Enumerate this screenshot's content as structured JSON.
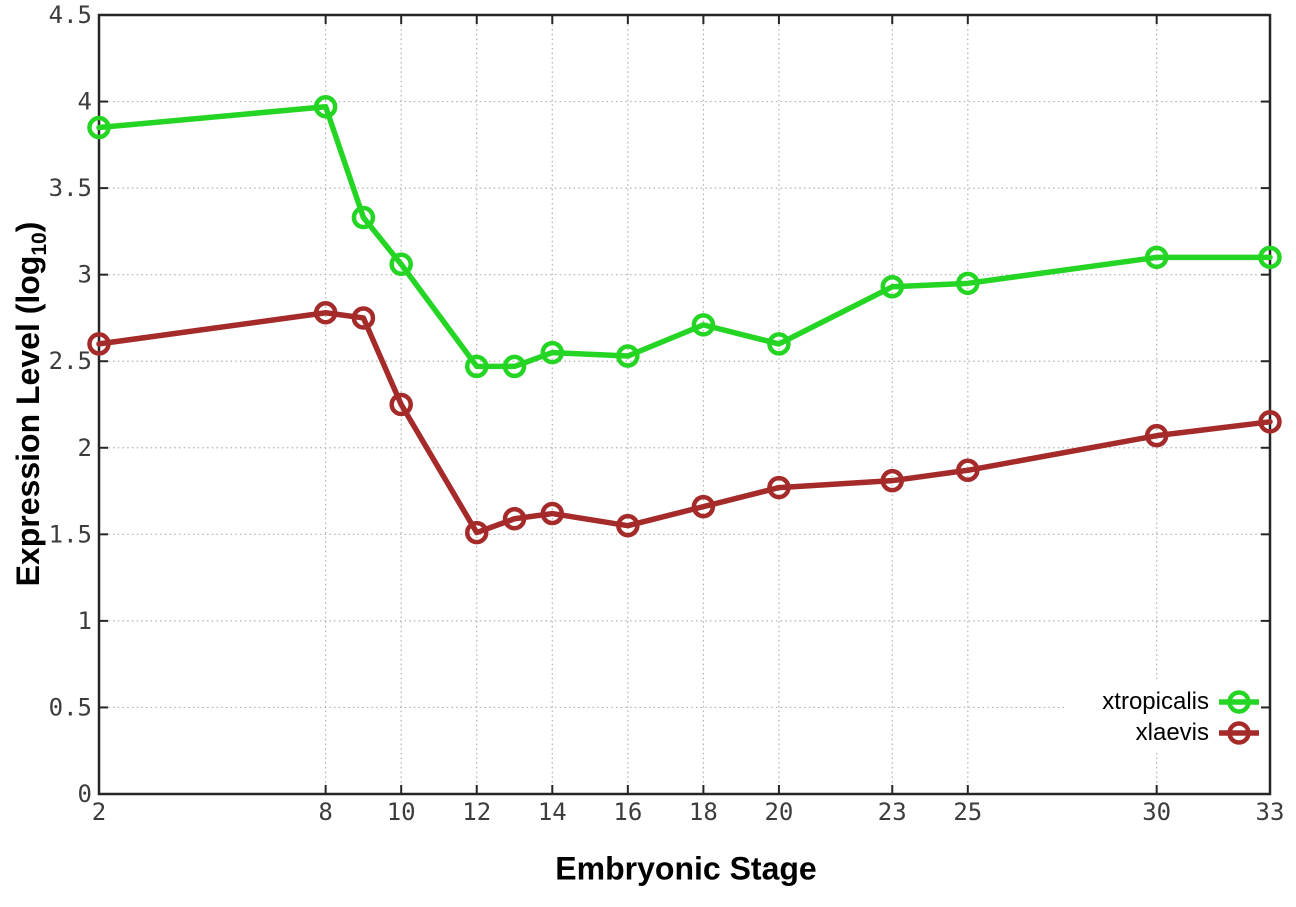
{
  "chart_data": {
    "type": "line",
    "title": "",
    "xlabel": "Embryonic Stage",
    "ylabel": "Expression Level (log10)",
    "ylabel_parts": {
      "prefix": "Expression Level (log",
      "sub": "10",
      "suffix": ")"
    },
    "xlim": [
      2,
      33
    ],
    "ylim": [
      0,
      4.5
    ],
    "grid": true,
    "legend_position": "inside bottom-right",
    "x": [
      2,
      8,
      9,
      10,
      12,
      13,
      14,
      16,
      18,
      20,
      23,
      25,
      30,
      33
    ],
    "x_tick_values": [
      2,
      8,
      10,
      12,
      14,
      16,
      18,
      20,
      23,
      25,
      30,
      33
    ],
    "x_tick_labels": [
      "2",
      "8",
      "10",
      "12",
      "14",
      "16",
      "18",
      "20",
      "23",
      "25",
      "30",
      "33"
    ],
    "y_tick_values": [
      0,
      0.5,
      1,
      1.5,
      2,
      2.5,
      3,
      3.5,
      4,
      4.5
    ],
    "y_tick_labels": [
      "0",
      "0.5",
      "1",
      "1.5",
      "2",
      "2.5",
      "3",
      "3.5",
      "4",
      "4.5"
    ],
    "series": [
      {
        "name": "xtropicalis",
        "color": "#24d524",
        "values": [
          3.85,
          3.97,
          3.33,
          3.06,
          2.47,
          2.47,
          2.55,
          2.53,
          2.71,
          2.6,
          2.93,
          2.95,
          3.1,
          3.1
        ]
      },
      {
        "name": "xlaevis",
        "color": "#a52a2a",
        "values": [
          2.6,
          2.78,
          2.75,
          2.25,
          1.51,
          1.59,
          1.62,
          1.55,
          1.66,
          1.77,
          1.81,
          1.87,
          2.07,
          2.15
        ]
      }
    ]
  },
  "style": {
    "background": "#ffffff",
    "axis_color": "#262626",
    "grid_color": "#b0b0b0",
    "tick_label_color": "#3c3c3c",
    "title_color": "#000000",
    "legend_text_color": "#000000"
  }
}
